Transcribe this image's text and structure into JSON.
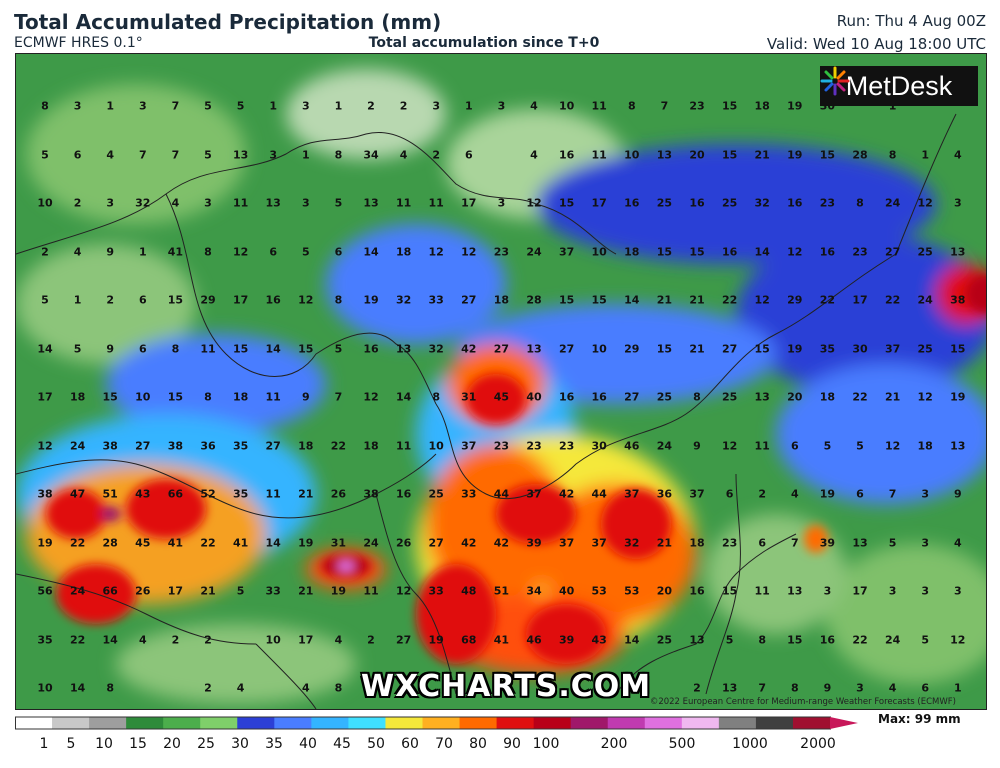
{
  "header": {
    "title": "Total Accumulated Precipitation (mm)",
    "model": "ECMWF HRES 0.1°",
    "subtitle": "Total accumulation since T+0",
    "run": "Run: Thu 4 Aug 00Z",
    "valid": "Valid: Wed 10 Aug 18:00 UTC"
  },
  "logo": {
    "text": "MetDesk",
    "icon": "starburst-logo-icon"
  },
  "watermark": "WXCHARTS.COM",
  "copyright": "©2022 European Centre for Medium-range Weather Forecasts (ECMWF)",
  "colorbar": {
    "max_label": "Max: 99 mm",
    "labels": [
      "1",
      "5",
      "10",
      "15",
      "20",
      "25",
      "30",
      "35",
      "40",
      "45",
      "50",
      "60",
      "70",
      "80",
      "90",
      "100",
      "200",
      "500",
      "1000",
      "2000"
    ],
    "colors": [
      "#ffffff",
      "#c8c8c8",
      "#9e9e9e",
      "#2e8b3a",
      "#4cae4c",
      "#7fcf6a",
      "#2c3fd6",
      "#4a7dff",
      "#34b4ff",
      "#3fe0ff",
      "#f5e83a",
      "#ffb020",
      "#ff6a00",
      "#e01010",
      "#b80018",
      "#a0186a",
      "#c03ab0",
      "#e070e0",
      "#f0b8f0",
      "#808080",
      "#404040",
      "#a01030"
    ]
  },
  "grid_values": [
    [
      "8",
      "3",
      "1",
      "3",
      "7",
      "5",
      "5",
      "1",
      "3",
      "1",
      "2",
      "2",
      "3",
      "1",
      "3",
      "4",
      "10",
      "11",
      "8",
      "7",
      "23",
      "15",
      "18",
      "19",
      "30",
      "",
      "1"
    ],
    [
      "5",
      "6",
      "4",
      "7",
      "7",
      "5",
      "13",
      "3",
      "1",
      "8",
      "34",
      "4",
      "2",
      "6",
      "",
      "4",
      "16",
      "11",
      "10",
      "13",
      "20",
      "15",
      "21",
      "19",
      "15",
      "28",
      "8",
      "1",
      "4"
    ],
    [
      "10",
      "2",
      "3",
      "32",
      "4",
      "3",
      "11",
      "13",
      "3",
      "5",
      "13",
      "11",
      "11",
      "17",
      "3",
      "12",
      "15",
      "17",
      "16",
      "25",
      "16",
      "25",
      "32",
      "16",
      "23",
      "8",
      "24",
      "12",
      "3"
    ],
    [
      "2",
      "4",
      "9",
      "1",
      "41",
      "8",
      "12",
      "6",
      "5",
      "6",
      "14",
      "18",
      "12",
      "12",
      "23",
      "24",
      "37",
      "10",
      "18",
      "15",
      "15",
      "16",
      "14",
      "12",
      "16",
      "23",
      "27",
      "25",
      "13"
    ],
    [
      "5",
      "1",
      "2",
      "6",
      "15",
      "29",
      "17",
      "16",
      "12",
      "8",
      "19",
      "32",
      "33",
      "27",
      "18",
      "28",
      "15",
      "15",
      "14",
      "21",
      "21",
      "22",
      "12",
      "29",
      "22",
      "17",
      "22",
      "24",
      "38"
    ],
    [
      "14",
      "5",
      "9",
      "6",
      "8",
      "11",
      "15",
      "14",
      "15",
      "5",
      "16",
      "13",
      "32",
      "42",
      "27",
      "13",
      "27",
      "10",
      "29",
      "15",
      "21",
      "27",
      "15",
      "19",
      "35",
      "30",
      "37",
      "25",
      "15"
    ],
    [
      "17",
      "18",
      "15",
      "10",
      "15",
      "8",
      "18",
      "11",
      "9",
      "7",
      "12",
      "14",
      "8",
      "31",
      "45",
      "40",
      "16",
      "16",
      "27",
      "25",
      "8",
      "25",
      "13",
      "20",
      "18",
      "22",
      "21",
      "12",
      "19"
    ],
    [
      "12",
      "24",
      "38",
      "27",
      "38",
      "36",
      "35",
      "27",
      "18",
      "22",
      "18",
      "11",
      "10",
      "37",
      "23",
      "23",
      "23",
      "30",
      "46",
      "24",
      "9",
      "12",
      "11",
      "6",
      "5",
      "5",
      "12",
      "18",
      "13"
    ],
    [
      "38",
      "47",
      "51",
      "43",
      "66",
      "52",
      "35",
      "11",
      "21",
      "26",
      "38",
      "16",
      "25",
      "33",
      "44",
      "37",
      "42",
      "44",
      "37",
      "36",
      "37",
      "6",
      "2",
      "4",
      "19",
      "6",
      "7",
      "3",
      "9"
    ],
    [
      "19",
      "22",
      "28",
      "45",
      "41",
      "22",
      "41",
      "14",
      "19",
      "31",
      "24",
      "26",
      "27",
      "42",
      "42",
      "39",
      "37",
      "37",
      "32",
      "21",
      "18",
      "23",
      "6",
      "7",
      "39",
      "13",
      "5",
      "3",
      "4"
    ],
    [
      "56",
      "24",
      "66",
      "26",
      "17",
      "21",
      "5",
      "33",
      "21",
      "19",
      "11",
      "12",
      "33",
      "48",
      "51",
      "34",
      "40",
      "53",
      "53",
      "20",
      "16",
      "15",
      "11",
      "13",
      "3",
      "17",
      "3",
      "3",
      "3"
    ],
    [
      "35",
      "22",
      "14",
      "4",
      "2",
      "2",
      "",
      "10",
      "17",
      "4",
      "2",
      "27",
      "19",
      "68",
      "41",
      "46",
      "39",
      "43",
      "14",
      "25",
      "13",
      "5",
      "8",
      "15",
      "16",
      "22",
      "24",
      "5",
      "12"
    ],
    [
      "10",
      "14",
      "8",
      "",
      "",
      "2",
      "4",
      "",
      "4",
      "8",
      "",
      "",
      "",
      "",
      "",
      "",
      "",
      "",
      "",
      "",
      "2",
      "13",
      "7",
      "8",
      "9",
      "3",
      "4",
      "6",
      "1"
    ]
  ]
}
